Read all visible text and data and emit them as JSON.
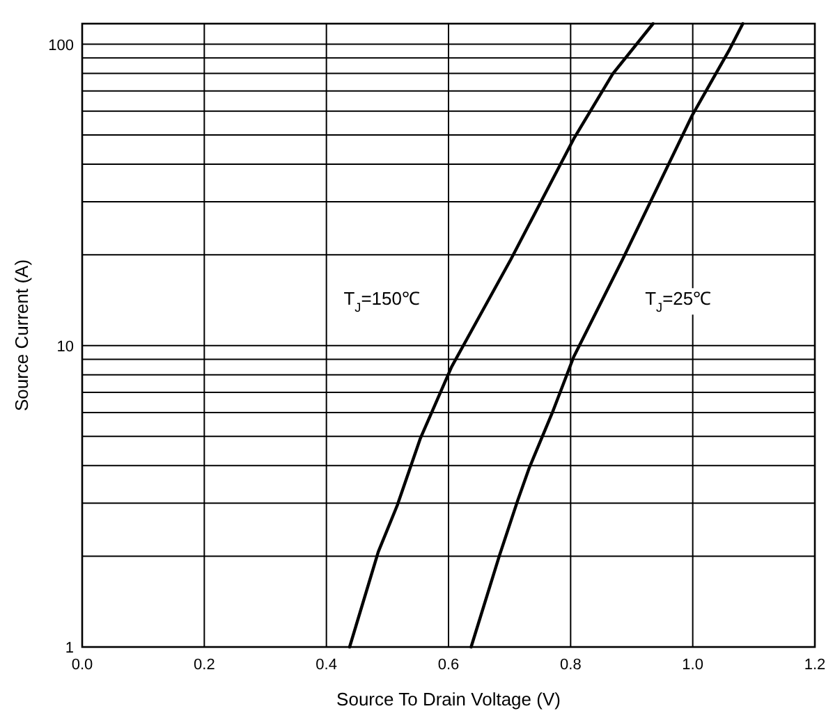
{
  "chart_data": {
    "type": "line",
    "xlabel": "Source To Drain Voltage  (V)",
    "ylabel": "Source Current  (A)",
    "log": "y",
    "grid": true,
    "marker": "none",
    "line_style": "solid",
    "xlim": [
      0.0,
      1.2
    ],
    "xticks": [
      {
        "value": 0,
        "label": "0.0"
      },
      0.2,
      0.4,
      0.6,
      0.8,
      {
        "value": 1,
        "label": "1.0"
      },
      1.2
    ],
    "ylim": [
      1,
      117
    ],
    "yticks": [
      1,
      {
        "value": 2,
        "label": null
      },
      {
        "value": 3,
        "label": null
      },
      {
        "value": 4,
        "label": null
      },
      {
        "value": 5,
        "label": null
      },
      {
        "value": 6,
        "label": null
      },
      {
        "value": 7,
        "label": null
      },
      {
        "value": 8,
        "label": null
      },
      {
        "value": 9,
        "label": null
      },
      10,
      {
        "value": 20,
        "label": null
      },
      {
        "value": 30,
        "label": null
      },
      {
        "value": 40,
        "label": null
      },
      {
        "value": 50,
        "label": null
      },
      {
        "value": 60,
        "label": null
      },
      {
        "value": 70,
        "label": null
      },
      {
        "value": 80,
        "label": null
      },
      {
        "value": 90,
        "label": null
      },
      100
    ],
    "series": [
      {
        "name": "T$_{J}$=150℃",
        "color": "#000000",
        "x": [
          0.438,
          0.485,
          0.516,
          0.554,
          0.605,
          0.702,
          0.805,
          0.869,
          0.935
        ],
        "values": [
          1,
          2.07,
          2.95,
          4.93,
          8.5,
          19.3,
          48.5,
          79.7,
          117
        ]
      },
      {
        "name": "T$_{J}$=25℃",
        "color": "#000000",
        "x": [
          0.637,
          0.683,
          0.713,
          0.732,
          0.77,
          0.805,
          0.885,
          0.999,
          1.059,
          1.082
        ],
        "values": [
          1,
          2.0,
          3.05,
          3.92,
          5.99,
          9.17,
          19.3,
          58,
          95,
          117
        ]
      }
    ]
  }
}
